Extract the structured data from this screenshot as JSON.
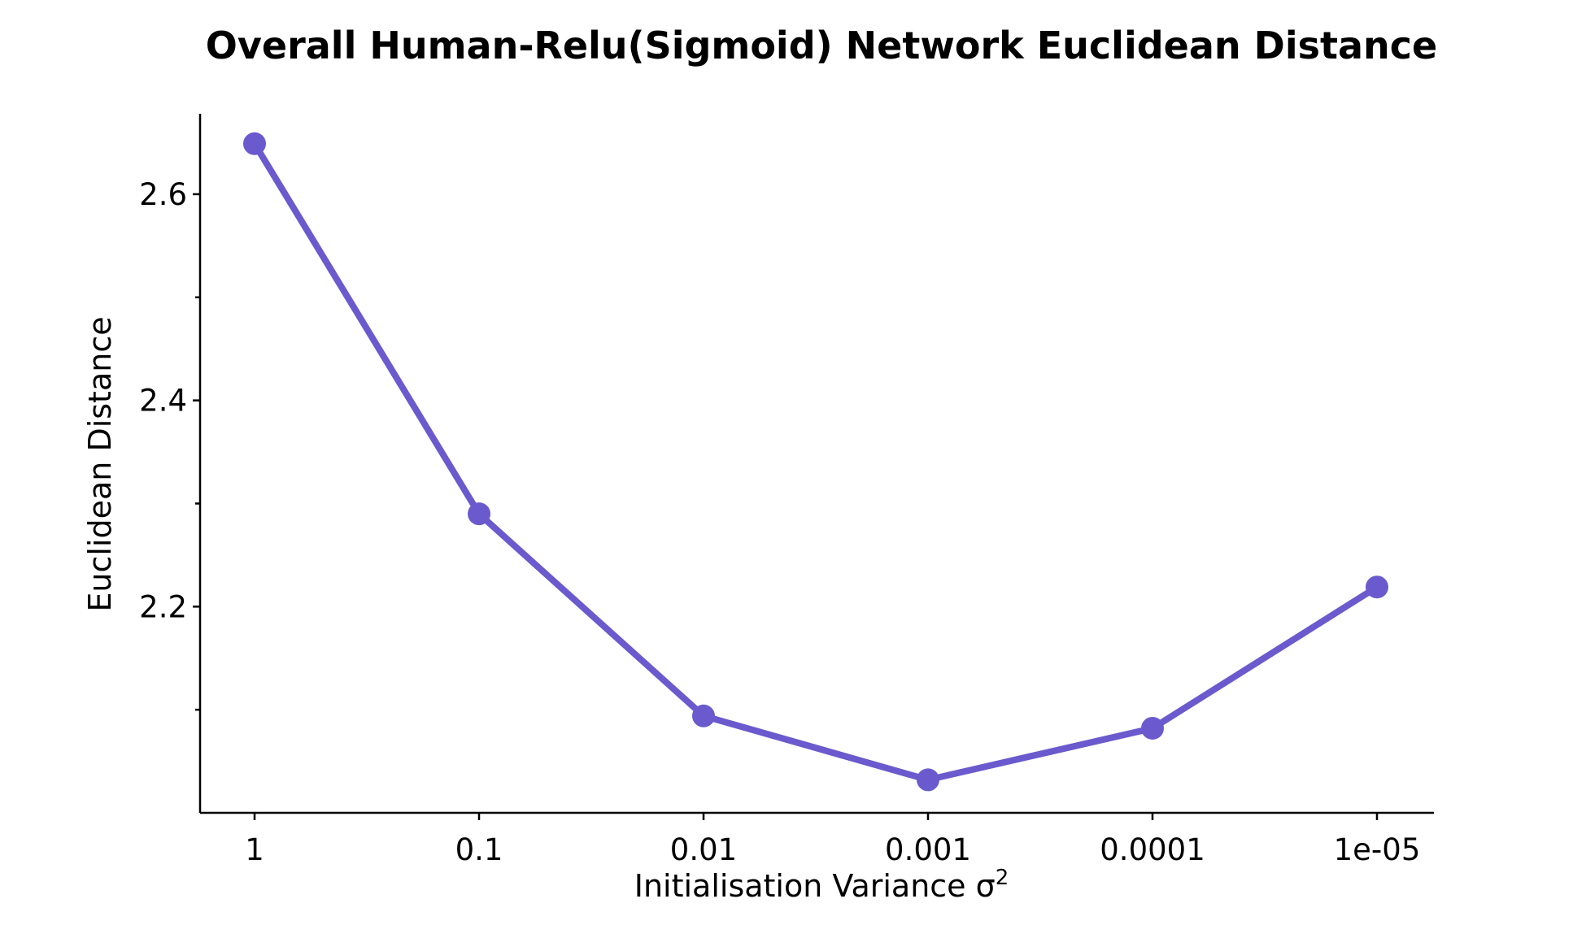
{
  "chart_data": {
    "type": "line",
    "title": "Overall Human-Relu(Sigmoid) Network Euclidean Distance",
    "xlabel": "Initialisation Variance σ",
    "xlabel_superscript": "2",
    "ylabel": "Euclidean Distance",
    "categories": [
      "1",
      "0.1",
      "0.01",
      "0.001",
      "0.0001",
      "1e-05"
    ],
    "series": [
      {
        "values": [
          2.649,
          2.29,
          2.094,
          2.032,
          2.082,
          2.219
        ],
        "color": "#6a5acd"
      }
    ],
    "yticks": [
      2.2,
      2.4,
      2.6
    ],
    "ytick_labels": [
      "2.2",
      "2.4",
      "2.6"
    ],
    "yminor_ticks": [
      2.1,
      2.3,
      2.5
    ],
    "ylim": [
      2.0,
      2.678
    ],
    "grid": false,
    "legend": "none"
  }
}
